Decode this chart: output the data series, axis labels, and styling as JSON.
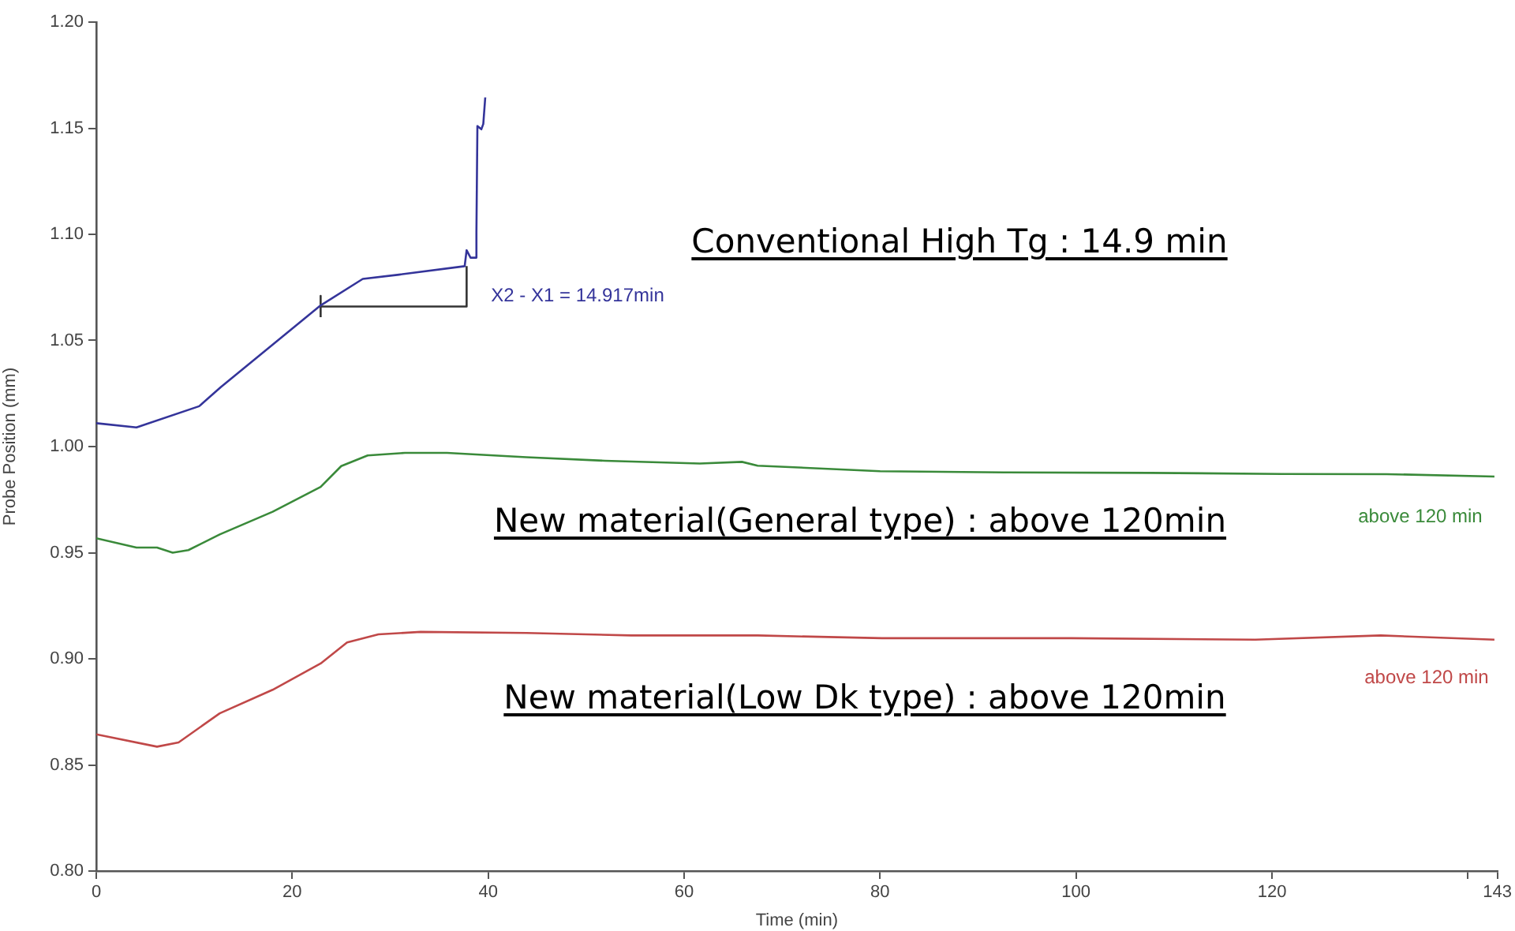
{
  "chart_data": {
    "type": "line",
    "xlabel": "Time (min)",
    "ylabel": "Probe Position (mm)",
    "xlim": [
      0,
      143
    ],
    "xticks": [
      0,
      20,
      40,
      60,
      80,
      100,
      120,
      {
        "value": 140,
        "label": null
      },
      143
    ],
    "ylim": [
      0.8,
      1.2
    ],
    "yticks": [
      {
        "value": 0.8,
        "label": "0.80"
      },
      {
        "value": 0.85,
        "label": "0.85"
      },
      {
        "value": 0.9,
        "label": "0.90"
      },
      {
        "value": 0.95,
        "label": "0.95"
      },
      {
        "value": 1.0,
        "label": "1.00"
      },
      {
        "value": 1.05,
        "label": "1.05"
      },
      {
        "value": 1.1,
        "label": "1.10"
      },
      {
        "value": 1.15,
        "label": "1.15"
      },
      {
        "value": 1.2,
        "label": "1.20"
      }
    ],
    "grid": false,
    "legend": false,
    "marker": "none",
    "line_style": "solid",
    "series": [
      {
        "color": "#34349a",
        "x": [
          0,
          4.1,
          10.5,
          12.7,
          22.9,
          27.2,
          30.9,
          37.6,
          37.8,
          38.2,
          38.7,
          38.8,
          38.9,
          39.3,
          39.5,
          39.7
        ],
        "values": [
          1.011,
          1.009,
          1.019,
          1.028,
          1.0665,
          1.079,
          1.081,
          1.085,
          1.0925,
          1.089,
          1.089,
          1.101,
          1.151,
          1.1495,
          1.152,
          1.1645
        ]
      },
      {
        "color": "#3a8a3a",
        "x": [
          0,
          4.1,
          6.2,
          7.8,
          9.4,
          12.6,
          18,
          22.9,
          25,
          27.7,
          31.5,
          35.8,
          43.9,
          51.9,
          61.6,
          65.9,
          67.5,
          80,
          93,
          107.6,
          121,
          131.7,
          142.7
        ],
        "values": [
          0.9568,
          0.9524,
          0.9524,
          0.95,
          0.9512,
          0.9586,
          0.9693,
          0.981,
          0.9908,
          0.9958,
          0.997,
          0.997,
          0.995,
          0.9933,
          0.992,
          0.9928,
          0.991,
          0.9884,
          0.9878,
          0.9876,
          0.9871,
          0.987,
          0.9859
        ]
      },
      {
        "color": "#c04848",
        "x": [
          0,
          6.2,
          8.4,
          12.6,
          18,
          22.9,
          25.6,
          28.8,
          33.1,
          43.9,
          54.6,
          67.5,
          80.2,
          99.5,
          118.3,
          131.1,
          142.7
        ],
        "values": [
          0.8644,
          0.8586,
          0.8606,
          0.8743,
          0.8854,
          0.8978,
          0.9077,
          0.9115,
          0.9127,
          0.9122,
          0.911,
          0.911,
          0.9097,
          0.9097,
          0.909,
          0.911,
          0.909
        ]
      },
      {
        "color": "#333333",
        "x": [
          22.9,
          22.9,
          22.9,
          37.8,
          37.8
        ],
        "values": [
          1.061,
          1.071,
          1.066,
          1.066,
          1.085
        ]
      }
    ],
    "annotations": [
      "Conventional High Tg : 14.9 min",
      "New material(General type) : above 120min",
      "New material(Low Dk type) : above 120min",
      "X2 - X1 = 14.917min",
      "above 120 min",
      "above 120 min"
    ]
  }
}
